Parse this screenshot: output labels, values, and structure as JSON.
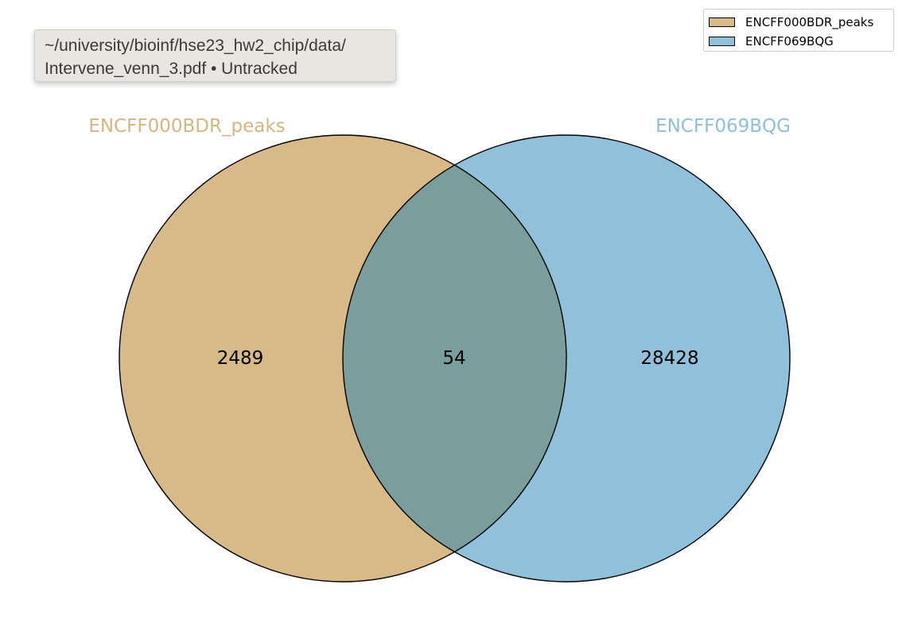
{
  "tooltip": {
    "path_line1": "~/university/bioinf/hse23_hw2_chip/data/",
    "path_line2": "Intervene_venn_3.pdf • Untracked"
  },
  "legend": {
    "items": [
      {
        "label": "ENCFF000BDR_peaks",
        "color": "#d8ba88"
      },
      {
        "label": "ENCFF069BQG",
        "color": "#90c0da"
      }
    ]
  },
  "venn": {
    "sets": [
      {
        "name": "ENCFF000BDR_peaks",
        "color": "#d8ba88",
        "label_color": "#d4b680"
      },
      {
        "name": "ENCFF069BQG",
        "color": "#90c0da",
        "label_color": "#8ec0d8"
      }
    ],
    "overlap_color": "#7a9e9e",
    "counts": {
      "left_only": "2489",
      "intersection": "54",
      "right_only": "28428"
    }
  }
}
